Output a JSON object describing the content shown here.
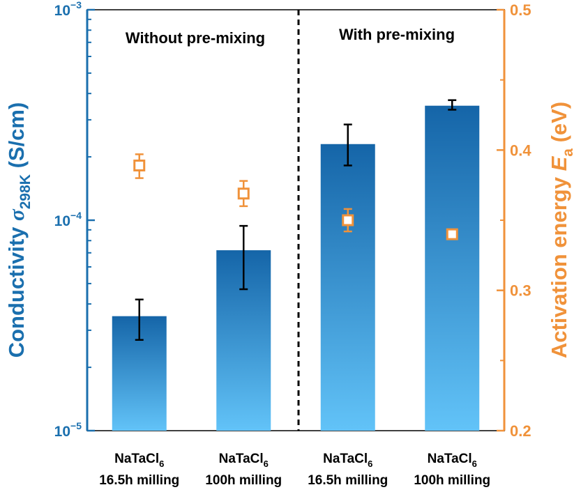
{
  "chart_data": {
    "type": "bar",
    "categories": [
      {
        "line1": "NaTaCl",
        "sub": "6",
        "line2": "16.5h milling"
      },
      {
        "line1": "NaTaCl",
        "sub": "6",
        "line2": "100h milling"
      },
      {
        "line1": "NaTaCl",
        "sub": "6",
        "line2": "16.5h milling"
      },
      {
        "line1": "NaTaCl",
        "sub": "6",
        "line2": "100h milling"
      }
    ],
    "groups": [
      {
        "label": "Without pre-mixing"
      },
      {
        "label": "With pre-mixing"
      }
    ],
    "series": [
      {
        "kind": "bar",
        "axis": "left",
        "values": [
          3.5e-05,
          7.2e-05,
          0.00023,
          0.00035
        ],
        "error_low": [
          2.7e-05,
          4.7e-05,
          0.000182,
          0.000335
        ],
        "error_high": [
          4.2e-05,
          9.4e-05,
          0.000285,
          0.000372
        ]
      },
      {
        "kind": "marker",
        "axis": "right",
        "values": [
          0.389,
          0.369,
          0.35,
          0.34
        ],
        "error_low": [
          0.38,
          0.36,
          0.342,
          0.34
        ],
        "error_high": [
          0.397,
          0.378,
          0.358,
          0.34
        ]
      }
    ],
    "left_axis": {
      "scale": "log",
      "ylim": [
        1e-05,
        0.001
      ],
      "ticks": [
        {
          "base": "10",
          "exp": "−3",
          "value": 0.001
        },
        {
          "base": "10",
          "exp": "−4",
          "value": 0.0001
        },
        {
          "base": "10",
          "exp": "−5",
          "value": 1e-05
        }
      ],
      "title_main": "Conductivity ",
      "title_symbol": "σ",
      "title_sub": "298K",
      "title_unit": " (S/cm)"
    },
    "right_axis": {
      "scale": "linear",
      "ylim": [
        0.2,
        0.5
      ],
      "ticks": [
        "0.2",
        "0.3",
        "0.4",
        "0.5"
      ],
      "title_main": "Activation energy ",
      "title_symbol": "E",
      "title_sub": "a",
      "title_unit": " (eV)"
    },
    "colors": {
      "left_axis": "#1a6fae",
      "right_axis": "#f0923a",
      "bar_top": "#1565a8",
      "bar_bottom": "#62c3f8",
      "error_bar": "#000000",
      "divider": "#000000"
    }
  }
}
